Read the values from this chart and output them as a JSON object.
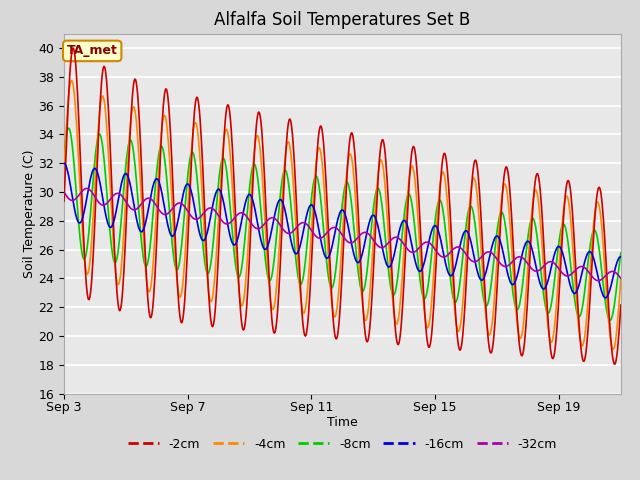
{
  "title": "Alfalfa Soil Temperatures Set B",
  "xlabel": "Time",
  "ylabel": "Soil Temperature (C)",
  "ylim": [
    16,
    41
  ],
  "yticks": [
    16,
    18,
    20,
    22,
    24,
    26,
    28,
    30,
    32,
    34,
    36,
    38,
    40
  ],
  "xtick_labels": [
    "Sep 3",
    "Sep 7",
    "Sep 11",
    "Sep 15",
    "Sep 19"
  ],
  "xtick_days": [
    0,
    4,
    8,
    12,
    16
  ],
  "background_color": "#d8d8d8",
  "plot_bg_color": "#e8e8e8",
  "annotation_text": "TA_met",
  "annotation_bg": "#ffffcc",
  "annotation_border": "#cc8800",
  "annotation_text_color": "#880000",
  "colors": {
    "-2cm": "#cc0000",
    "-4cm": "#ff8800",
    "-8cm": "#00cc00",
    "-16cm": "#0000dd",
    "-32cm": "#aa00aa"
  },
  "legend_labels": [
    "-2cm",
    "-4cm",
    "-8cm",
    "-16cm",
    "-32cm"
  ],
  "line_width": 1.2,
  "title_fontsize": 12,
  "axis_label_fontsize": 9,
  "tick_fontsize": 9,
  "legend_fontsize": 9,
  "grid_color": "#ffffff",
  "grid_linewidth": 1.2,
  "figsize": [
    6.4,
    4.8
  ],
  "dpi": 100
}
